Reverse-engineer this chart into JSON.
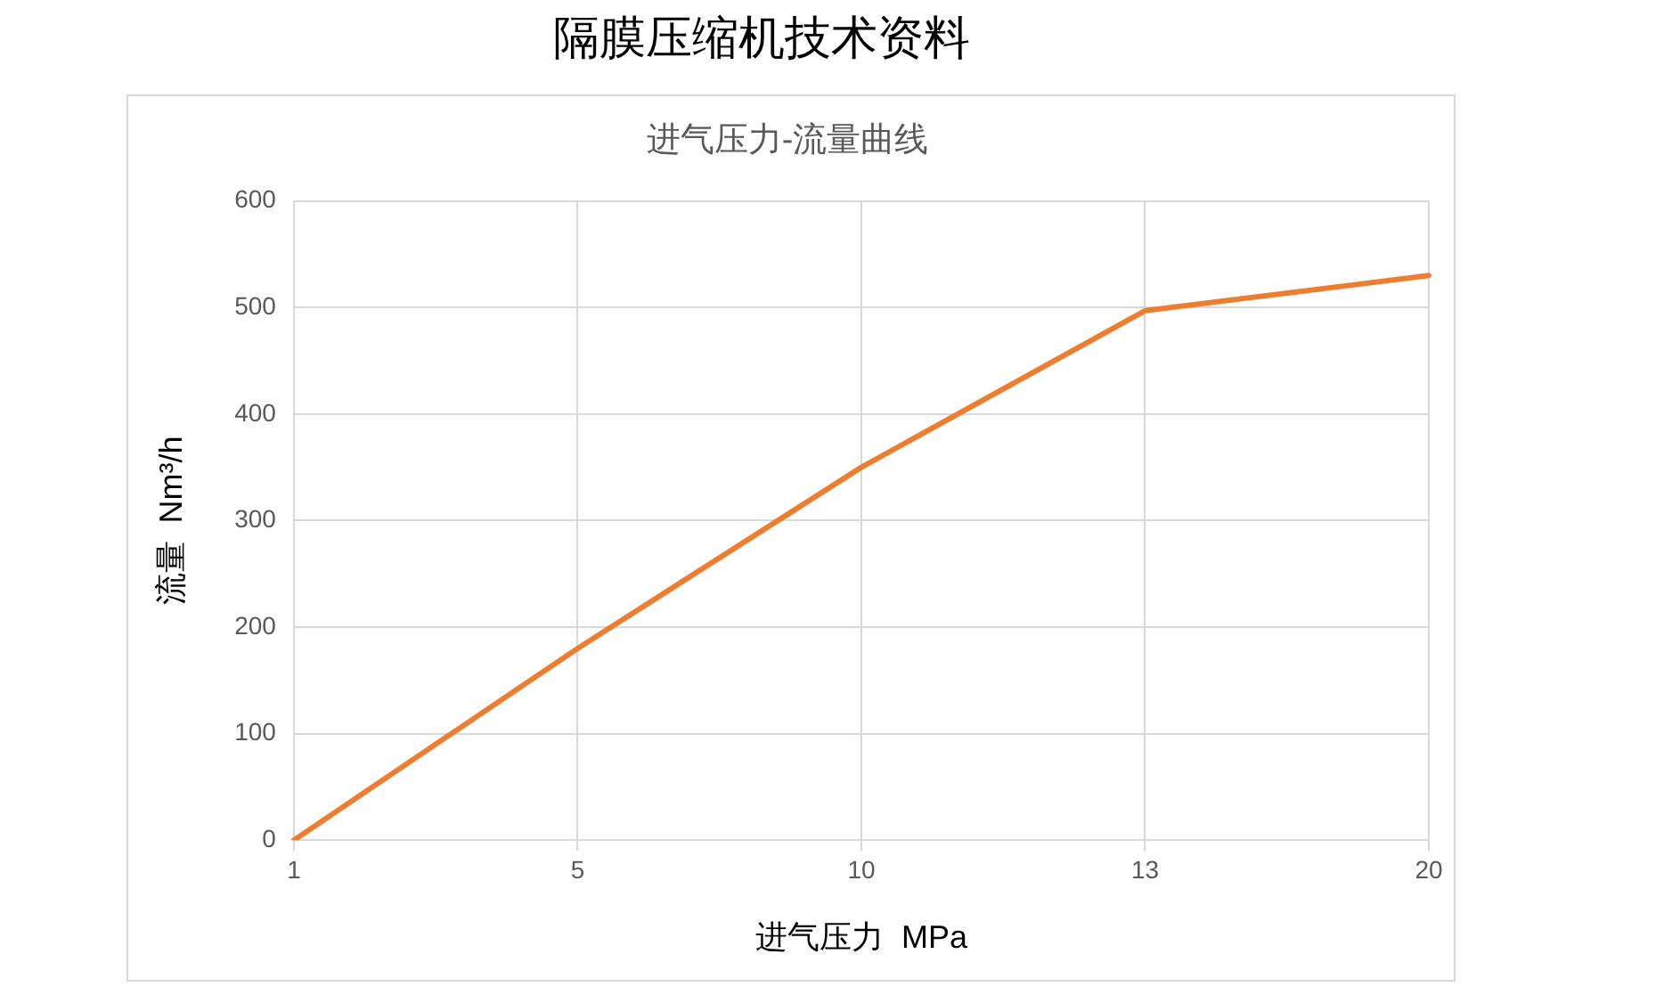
{
  "chart_data": {
    "type": "line",
    "title": "隔膜压缩机技术资料",
    "subtitle": "进气压力-流量曲线",
    "xlabel": "进气压力  MPa",
    "ylabel": "流量  Nm³/h",
    "categories": [
      "1",
      "5",
      "10",
      "13",
      "20"
    ],
    "series": [
      {
        "color": "#ed7d31",
        "values": [
          0,
          180,
          350,
          497,
          530
        ]
      }
    ],
    "ylim": [
      0,
      600
    ],
    "yticks": [
      0,
      100,
      200,
      300,
      400,
      500,
      600
    ],
    "grid": true,
    "legend": false,
    "marker": "none",
    "line_style": "solid"
  }
}
